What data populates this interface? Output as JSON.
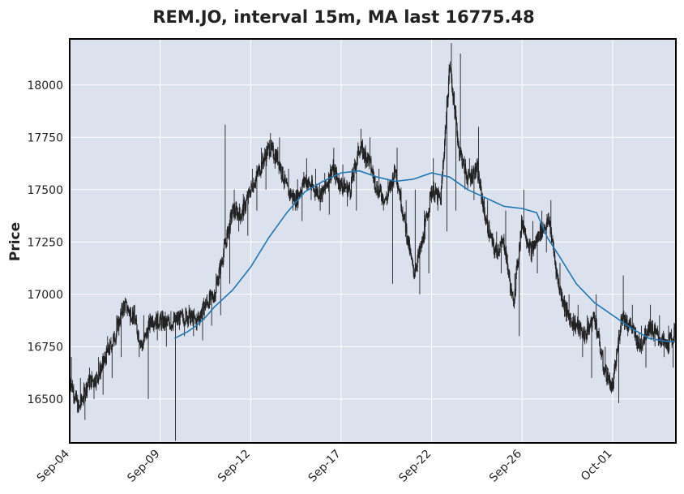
{
  "chart_data": {
    "type": "line",
    "title": "REM.JO, interval 15m, MA last 16775.48",
    "xlabel": "",
    "ylabel": "Price",
    "ylim": [
      16290,
      18220
    ],
    "y_ticks": [
      16500,
      16750,
      17000,
      17250,
      17500,
      17750,
      18000
    ],
    "x_ticks": [
      "Sep-04",
      "Sep-09",
      "Sep-12",
      "Sep-17",
      "Sep-22",
      "Sep-26",
      "Oct-01"
    ],
    "x_tick_index": [
      0,
      5,
      10,
      15,
      20,
      25,
      30
    ],
    "grid": true,
    "background": "#dce1ee",
    "colors": {
      "candles": "#222222",
      "ma": "#1f77b4"
    },
    "series": [
      {
        "style": "candlestick-ohlc-close-path",
        "x": [
          0,
          0.5,
          1.0,
          1.5,
          2.0,
          2.5,
          3.0,
          3.5,
          4.0,
          4.5,
          5.0,
          5.5,
          6.0,
          6.5,
          7.0,
          7.5,
          8.0,
          8.5,
          9.0,
          9.5,
          10.0,
          10.5,
          11.0,
          11.5,
          12.0,
          12.5,
          13.0,
          13.5,
          14.0,
          14.5,
          15.0,
          15.5,
          16.0,
          16.5,
          17.0,
          17.5,
          18.0,
          18.5,
          19.0,
          19.5,
          20.0,
          20.5,
          21.0,
          21.5,
          22.0,
          22.5,
          23.0,
          23.5,
          24.0,
          24.5,
          25.0,
          25.5,
          26.0,
          26.5,
          27.0,
          27.5,
          28.0,
          28.5,
          29.0,
          29.5,
          30.0,
          30.5,
          31.0,
          31.5,
          32.0,
          32.5,
          33.0,
          33.5
        ],
        "values": [
          16600,
          16450,
          16580,
          16600,
          16700,
          16800,
          16950,
          16900,
          16750,
          16880,
          16870,
          16860,
          16880,
          16900,
          16870,
          16950,
          17000,
          17200,
          17400,
          17380,
          17500,
          17600,
          17700,
          17650,
          17500,
          17450,
          17550,
          17500,
          17480,
          17600,
          17520,
          17500,
          17700,
          17650,
          17500,
          17450,
          17600,
          17350,
          17100,
          17250,
          17500,
          17450,
          18100,
          17700,
          17550,
          17600,
          17350,
          17200,
          17250,
          16950,
          17350,
          17200,
          17300,
          17350,
          17050,
          16900,
          16850,
          16800,
          16900,
          16650,
          16550,
          16900,
          16850,
          16750,
          16850,
          16800,
          16750,
          16820
        ],
        "low": [
          16500,
          16400,
          16500,
          16520,
          16600,
          16700,
          16850,
          16700,
          16500,
          16780,
          16750,
          16300,
          16800,
          16800,
          16780,
          16850,
          16900,
          17050,
          17300,
          17280,
          17400,
          17500,
          17600,
          17500,
          17400,
          17350,
          17450,
          17400,
          17380,
          17500,
          17420,
          17400,
          17600,
          17500,
          17400,
          17050,
          17400,
          17200,
          17000,
          17100,
          17400,
          17300,
          17400,
          17500,
          17450,
          17450,
          17250,
          17100,
          17100,
          16800,
          17250,
          17100,
          17200,
          17250,
          16950,
          16800,
          16700,
          16600,
          16800,
          16550,
          16480,
          16800,
          16750,
          16650,
          16750,
          16700,
          16650,
          16720
        ],
        "high": [
          16700,
          16600,
          16650,
          16700,
          16800,
          16900,
          16980,
          16950,
          16900,
          16900,
          16920,
          16920,
          16920,
          16950,
          16920,
          17000,
          17100,
          17810,
          17500,
          17480,
          17600,
          17700,
          17770,
          17750,
          17600,
          17550,
          17650,
          17600,
          17580,
          17700,
          17620,
          17600,
          17790,
          17750,
          17600,
          17550,
          17700,
          17450,
          17500,
          17400,
          17650,
          17550,
          18200,
          18150,
          17650,
          17800,
          17450,
          17300,
          17400,
          17100,
          17500,
          17350,
          17400,
          17450,
          17150,
          17000,
          16950,
          16900,
          17000,
          16750,
          16650,
          17090,
          16950,
          16850,
          16950,
          16900,
          16850,
          16900
        ]
      },
      {
        "name": "MA",
        "x": [
          5.8,
          6.5,
          7.0,
          7.5,
          8.0,
          8.5,
          9.0,
          10.0,
          11.0,
          12.0,
          13.0,
          14.0,
          15.0,
          16.0,
          17.0,
          18.0,
          19.0,
          20.0,
          21.0,
          22.0,
          23.0,
          24.0,
          25.0,
          25.8,
          26.4,
          27.0,
          27.5,
          28.0,
          29.0,
          30.0,
          31.0,
          32.0,
          33.0,
          33.5
        ],
        "values": [
          16790,
          16820,
          16850,
          16890,
          16940,
          16980,
          17020,
          17130,
          17270,
          17390,
          17490,
          17540,
          17580,
          17590,
          17560,
          17540,
          17550,
          17580,
          17560,
          17500,
          17460,
          17420,
          17410,
          17390,
          17270,
          17190,
          17120,
          17050,
          16960,
          16900,
          16840,
          16790,
          16775,
          16775
        ]
      }
    ]
  }
}
